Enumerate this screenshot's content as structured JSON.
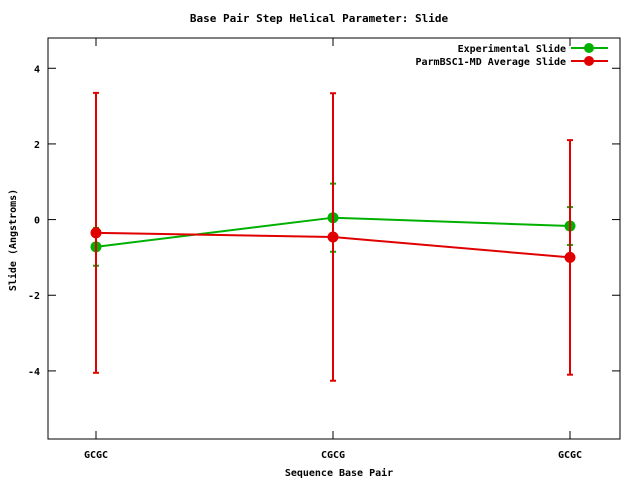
{
  "chart_data": {
    "type": "line",
    "title": "Base Pair Step Helical Parameter: Slide",
    "xlabel": "Sequence Base Pair",
    "ylabel": "Slide (Angstroms)",
    "categories": [
      "GCGC",
      "CGCG",
      "GCGC"
    ],
    "ylim": [
      -5.8,
      4.8
    ],
    "yticks": [
      4,
      2,
      0,
      -2,
      -4
    ],
    "ytick_labels": [
      "4",
      "2",
      "0",
      "-2",
      "-4"
    ],
    "grid": false,
    "legend_position": "top-right",
    "series": [
      {
        "name": "Experimental Slide",
        "color": "#00b000",
        "values": [
          -0.72,
          0.05,
          -0.17
        ],
        "error": [
          0.5,
          0.9,
          0.5
        ]
      },
      {
        "name": "ParmBSC1-MD Average Slide",
        "color": "#e00000",
        "values": [
          -0.35,
          -0.46,
          -1.0
        ],
        "error": [
          3.7,
          3.8,
          3.1
        ]
      }
    ]
  }
}
